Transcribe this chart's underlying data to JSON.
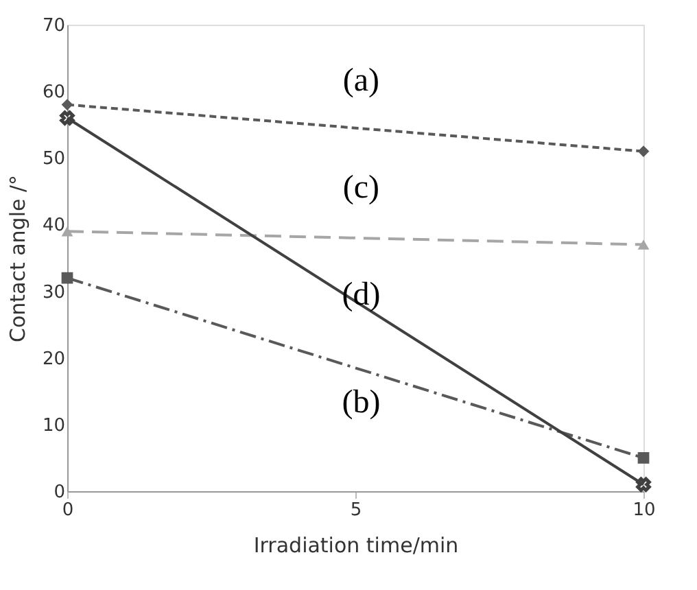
{
  "chart_data": {
    "type": "line",
    "xlabel": "Irradiation time/min",
    "ylabel": "Contact angle /°",
    "x": [
      0,
      10
    ],
    "xlim": [
      0,
      10
    ],
    "xticks": [
      0,
      5,
      10
    ],
    "ylim": [
      0,
      70
    ],
    "yticks": [
      0,
      10,
      20,
      30,
      40,
      50,
      60,
      70
    ],
    "grid": false,
    "series": [
      {
        "color": "#595959",
        "values": [
          58,
          51
        ],
        "marker": "diamond",
        "line_style": "dotted"
      },
      {
        "color": "#a6a6a6",
        "values": [
          39,
          37
        ],
        "marker": "triangle",
        "line_style": "dashed"
      },
      {
        "color": "#595959",
        "values": [
          32,
          5
        ],
        "marker": "square",
        "line_style": "dashdot"
      },
      {
        "color": "#404040",
        "values": [
          56,
          1
        ],
        "marker": "cross",
        "line_style": "solid"
      }
    ],
    "annotations": [
      "(a)",
      "(c)",
      "(d)",
      "(b)"
    ]
  }
}
